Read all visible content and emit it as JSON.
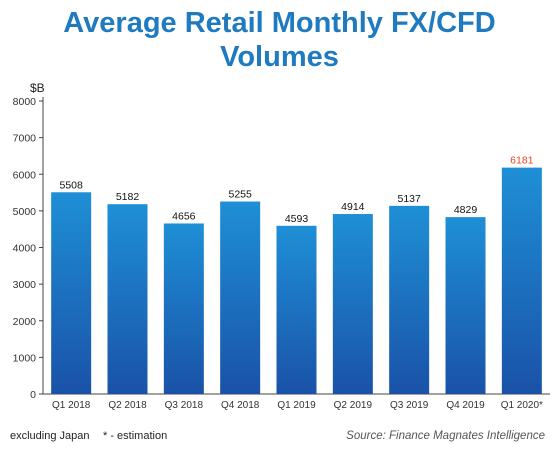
{
  "title_line1": "Average Retail Monthly FX/CFD",
  "title_line2": "Volumes",
  "footnote_left": "excluding Japan",
  "footnote_mid": "* - estimation",
  "source": "Source: Finance Magnates Intelligence",
  "colors": {
    "bar_top": "#1e8fd6",
    "bar_bottom": "#1a52a8",
    "highlight_label": "#e8442a",
    "title": "#1f7ac0"
  },
  "chart_data": {
    "type": "bar",
    "title": "Average Retail Monthly FX/CFD Volumes",
    "ylabel": "$B",
    "xlabel": "",
    "ylim": [
      0,
      8000
    ],
    "yticks": [
      0,
      1000,
      2000,
      3000,
      4000,
      5000,
      6000,
      7000,
      8000
    ],
    "grid": false,
    "categories": [
      "Q1 2018",
      "Q2 2018",
      "Q3 2018",
      "Q4 2018",
      "Q1 2019",
      "Q2 2019",
      "Q3 2019",
      "Q4 2019",
      "Q1 2020*"
    ],
    "values": [
      5508,
      5182,
      4656,
      5255,
      4593,
      4914,
      5137,
      4829,
      6181
    ],
    "labels": [
      "5508",
      "5182",
      "4656",
      "5255",
      "4593",
      "4914",
      "5137",
      "4829",
      "6181"
    ],
    "highlight_index": 8
  }
}
